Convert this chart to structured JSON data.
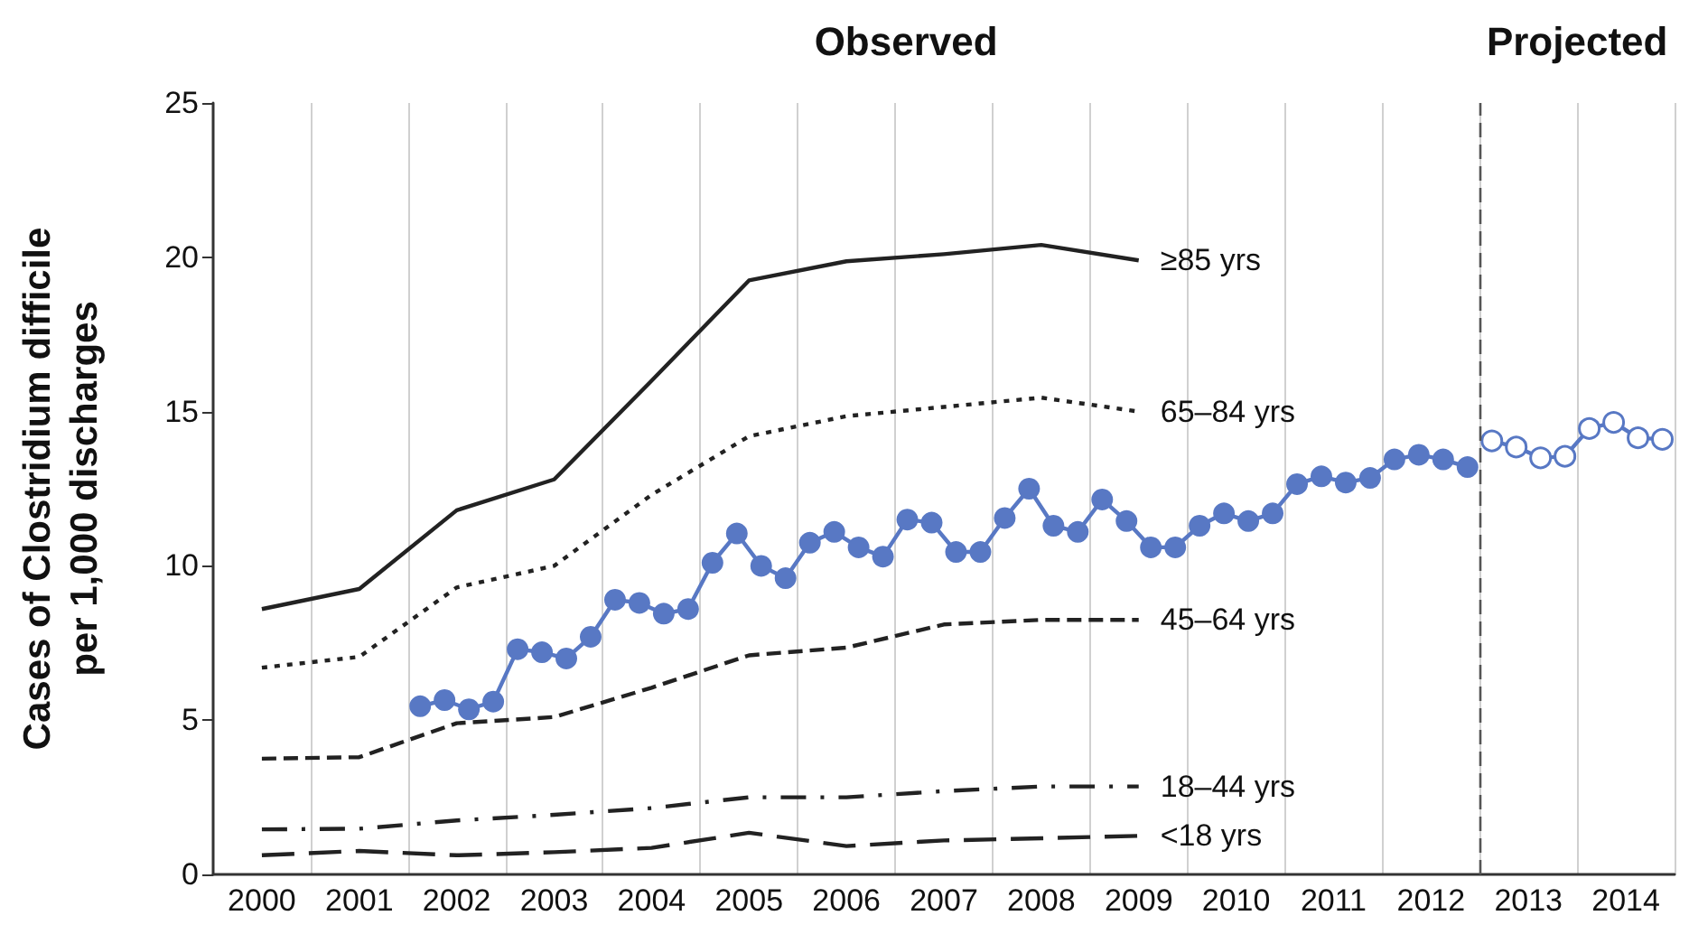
{
  "chart_data": {
    "type": "line",
    "ylabel": "Cases of Clostridium difficile per 1,000 discharges",
    "annotations": [
      "Observed",
      "Projected"
    ],
    "xlim": [
      2000,
      2015
    ],
    "xticks": [
      {
        "value": 2000.5,
        "label": "2000"
      },
      {
        "value": 2001,
        "label": null
      },
      {
        "value": 2001.5,
        "label": "2001"
      },
      {
        "value": 2002,
        "label": null
      },
      {
        "value": 2002.5,
        "label": "2002"
      },
      {
        "value": 2003,
        "label": null
      },
      {
        "value": 2003.5,
        "label": "2003"
      },
      {
        "value": 2004,
        "label": null
      },
      {
        "value": 2004.5,
        "label": "2004"
      },
      {
        "value": 2005,
        "label": null
      },
      {
        "value": 2005.5,
        "label": "2005"
      },
      {
        "value": 2006,
        "label": null
      },
      {
        "value": 2006.5,
        "label": "2006"
      },
      {
        "value": 2007,
        "label": null
      },
      {
        "value": 2007.5,
        "label": "2007"
      },
      {
        "value": 2008,
        "label": null
      },
      {
        "value": 2008.5,
        "label": "2008"
      },
      {
        "value": 2009,
        "label": null
      },
      {
        "value": 2009.5,
        "label": "2009"
      },
      {
        "value": 2010,
        "label": null
      },
      {
        "value": 2010.5,
        "label": "2010"
      },
      {
        "value": 2011,
        "label": null
      },
      {
        "value": 2011.5,
        "label": "2011"
      },
      {
        "value": 2012,
        "label": null
      },
      {
        "value": 2012.5,
        "label": "2012"
      },
      {
        "value": 2013,
        "label": null
      },
      {
        "value": 2013.5,
        "label": "2013"
      },
      {
        "value": 2014,
        "label": null
      },
      {
        "value": 2014.5,
        "label": "2014"
      },
      {
        "value": 2015,
        "label": null
      }
    ],
    "ylim": [
      0,
      25
    ],
    "yticks": [
      0,
      5,
      10,
      15,
      20,
      25
    ],
    "grid": "x",
    "legend": false,
    "ref_lines": [
      {
        "axis": "x",
        "value": 2013,
        "label": null,
        "color": "#555555",
        "line_style": "dashed"
      }
    ],
    "series": [
      {
        "name": "≥85 yrs",
        "color": "#222222",
        "line_style": "solid",
        "marker": "none",
        "x": [
          2000.5,
          2001.5,
          2002.5,
          2003.5,
          2004.5,
          2005.5,
          2006.5,
          2007.5,
          2008.5,
          2009.5
        ],
        "values": [
          8.6,
          9.25,
          11.8,
          12.8,
          16.0,
          19.25,
          19.87,
          20.1,
          20.4,
          19.9
        ]
      },
      {
        "name": "65–84 yrs",
        "color": "#222222",
        "line_style": "dotted",
        "marker": "none",
        "x": [
          2000.5,
          2001.5,
          2002.5,
          2003.5,
          2004.5,
          2005.5,
          2006.5,
          2007.5,
          2008.5,
          2009.5
        ],
        "values": [
          6.7,
          7.05,
          9.3,
          10.0,
          12.3,
          14.2,
          14.85,
          15.15,
          15.45,
          15.0
        ]
      },
      {
        "name": "45–64 yrs",
        "color": "#222222",
        "line_style": "dashed",
        "marker": "none",
        "x": [
          2000.5,
          2001.5,
          2002.5,
          2003.5,
          2004.5,
          2005.5,
          2006.5,
          2007.5,
          2008.5,
          2009.5
        ],
        "values": [
          3.75,
          3.8,
          4.9,
          5.1,
          6.05,
          7.1,
          7.35,
          8.1,
          8.25,
          8.25
        ]
      },
      {
        "name": "18–44 yrs",
        "color": "#222222",
        "line_style": "dashed",
        "marker": "none",
        "x": [
          2000.5,
          2001.5,
          2002.5,
          2003.5,
          2004.5,
          2005.5,
          2006.5,
          2007.5,
          2008.5,
          2009.5
        ],
        "values": [
          1.46,
          1.48,
          1.75,
          1.93,
          2.15,
          2.5,
          2.5,
          2.7,
          2.85,
          2.85
        ]
      },
      {
        "name": "<18 yrs",
        "color": "#222222",
        "line_style": "dashed",
        "marker": "none",
        "x": [
          2000.5,
          2001.5,
          2002.5,
          2003.5,
          2004.5,
          2005.5,
          2006.5,
          2007.5,
          2008.5,
          2009.5
        ],
        "values": [
          0.62,
          0.76,
          0.62,
          0.72,
          0.86,
          1.35,
          0.92,
          1.1,
          1.17,
          1.25
        ]
      },
      {
        "color": "#5878c4",
        "line_style": "solid",
        "marker": "circle",
        "x": [
          2002.125,
          2002.375,
          2002.625,
          2002.875,
          2003.125,
          2003.375,
          2003.625,
          2003.875,
          2004.125,
          2004.375,
          2004.625,
          2004.875,
          2005.125,
          2005.375,
          2005.625,
          2005.875,
          2006.125,
          2006.375,
          2006.625,
          2006.875,
          2007.125,
          2007.375,
          2007.625,
          2007.875,
          2008.125,
          2008.375,
          2008.625,
          2008.875,
          2009.125,
          2009.375,
          2009.625,
          2009.875,
          2010.125,
          2010.375,
          2010.625,
          2010.875,
          2011.125,
          2011.375,
          2011.625,
          2011.875,
          2012.125,
          2012.375,
          2012.625,
          2012.875
        ],
        "values": [
          5.45,
          5.65,
          5.35,
          5.6,
          7.3,
          7.2,
          7.0,
          7.7,
          8.9,
          8.8,
          8.45,
          8.6,
          10.1,
          11.05,
          10.0,
          9.6,
          10.75,
          11.1,
          10.6,
          10.3,
          11.5,
          11.4,
          10.45,
          10.45,
          11.55,
          12.5,
          11.3,
          11.1,
          12.15,
          11.45,
          10.6,
          10.6,
          11.3,
          11.7,
          11.45,
          11.7,
          12.65,
          12.9,
          12.7,
          12.85,
          13.45,
          13.6,
          13.45,
          13.2
        ]
      },
      {
        "color": "#5878c4",
        "line_style": "solid",
        "marker": "circle",
        "x": [
          2013.125,
          2013.375,
          2013.625,
          2013.875,
          2014.125,
          2014.375,
          2014.625,
          2014.875
        ],
        "values": [
          14.05,
          13.85,
          13.5,
          13.55,
          14.45,
          14.65,
          14.15,
          14.1
        ]
      }
    ]
  }
}
